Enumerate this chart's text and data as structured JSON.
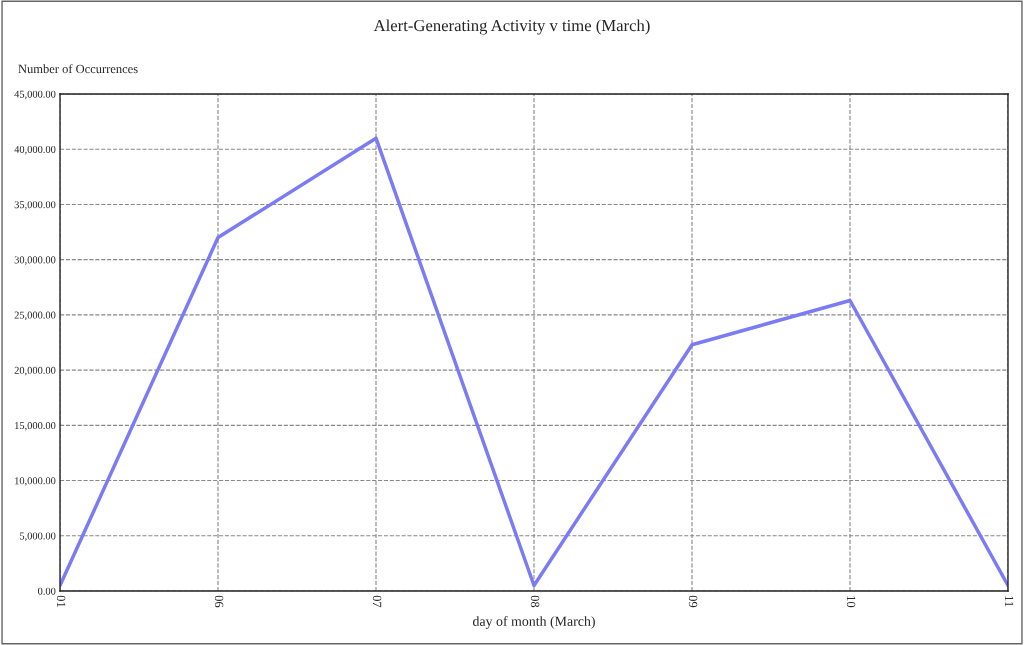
{
  "chart_data": {
    "type": "line",
    "title": "Alert-Generating Activity v time (March)",
    "xlabel": "day of month (March)",
    "ylabel": "Number of Occurrences",
    "categories": [
      "01",
      "06",
      "07",
      "08",
      "09",
      "10",
      "11"
    ],
    "series": [
      {
        "color": "#7b7bf5",
        "values": [
          500,
          32000,
          41000,
          500,
          22300,
          26300,
          500
        ]
      }
    ],
    "ylim": [
      0,
      45000
    ],
    "yticks": [
      {
        "value": 0,
        "label": "0.00"
      },
      {
        "value": 5000,
        "label": "5,000.00"
      },
      {
        "value": 10000,
        "label": "10,000.00"
      },
      {
        "value": 15000,
        "label": "15,000.00"
      },
      {
        "value": 20000,
        "label": "20,000.00"
      },
      {
        "value": 25000,
        "label": "25,000.00"
      },
      {
        "value": 30000,
        "label": "30,000.00"
      },
      {
        "value": 35000,
        "label": "35,000.00"
      },
      {
        "value": 40000,
        "label": "40,000.00"
      },
      {
        "value": 45000,
        "label": "45,000.00"
      }
    ],
    "grid": true,
    "marker": "none"
  }
}
